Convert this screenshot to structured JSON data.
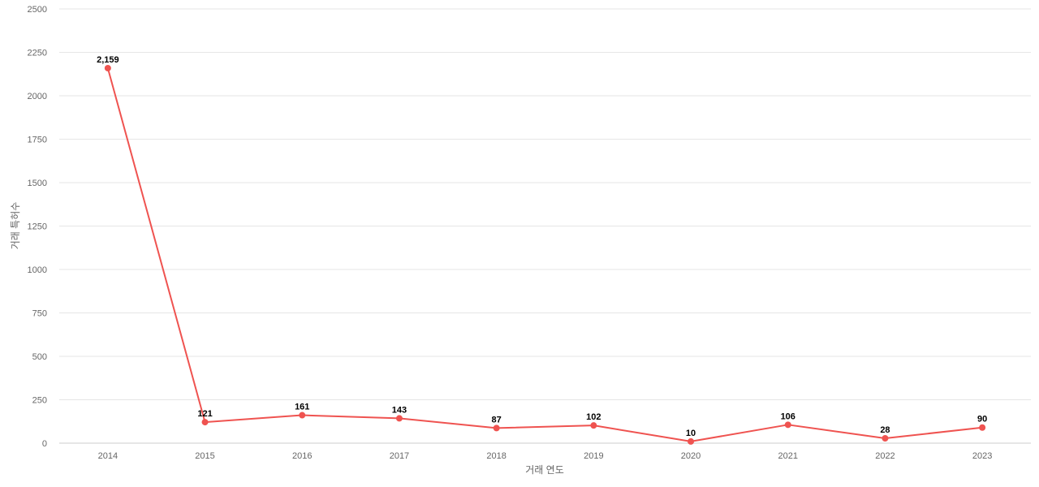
{
  "chart_data": {
    "type": "line",
    "title": "",
    "xlabel": "거래 연도",
    "ylabel": "거래 특허수",
    "categories": [
      "2014",
      "2015",
      "2016",
      "2017",
      "2018",
      "2019",
      "2020",
      "2021",
      "2022",
      "2023"
    ],
    "series": [
      {
        "values": [
          2159,
          121,
          161,
          143,
          87,
          102,
          10,
          106,
          28,
          90
        ],
        "labels": [
          "2,159",
          "121",
          "161",
          "143",
          "87",
          "102",
          "10",
          "106",
          "28",
          "90"
        ]
      }
    ],
    "ylim": [
      0,
      2500
    ],
    "yticks": [
      0,
      250,
      500,
      750,
      1000,
      1250,
      1500,
      1750,
      2000,
      2250,
      2500
    ],
    "grid": true,
    "legend": "none",
    "colors": {
      "line": "#ef5350",
      "grid": "#e6e6e6",
      "tick_text": "#666666",
      "label_text": "#000000"
    }
  }
}
